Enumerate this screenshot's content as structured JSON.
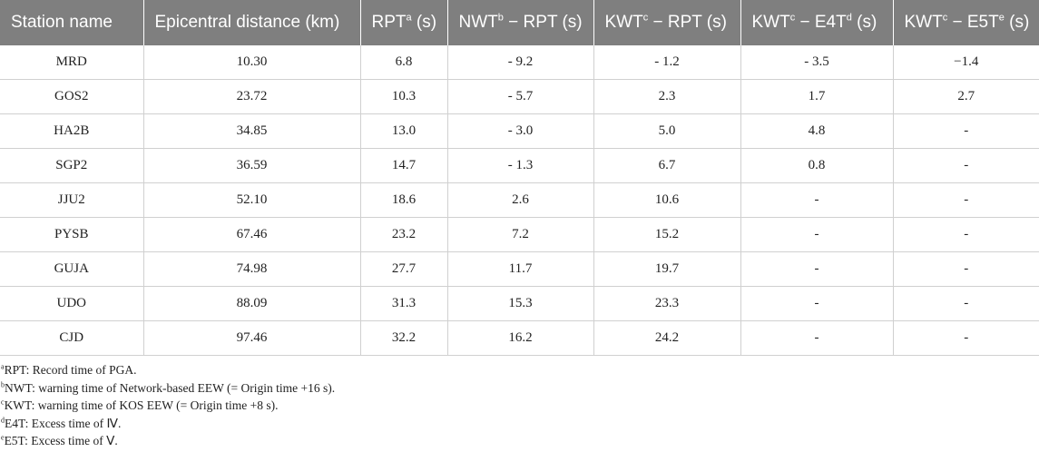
{
  "header": {
    "station": "Station name",
    "distance": "Epicentral distance (km)",
    "rpt": {
      "base": "RPT",
      "sup": "a",
      "tail": " (s)"
    },
    "nwt_rpt": {
      "base": "NWT",
      "sup": "b",
      "tail": " − RPT (s)"
    },
    "kwt_rpt": {
      "base": "KWT",
      "sup": "c",
      "tail": " − RPT (s)"
    },
    "kwt_e4t": {
      "base": "KWT",
      "sup": "c",
      "mid": " − E4T",
      "sup2": "d",
      "tail": " (s)"
    },
    "kwt_e5t": {
      "base": "KWT",
      "sup": "c",
      "mid": " − E5T",
      "sup2": "e",
      "tail": " (s)"
    }
  },
  "rows": [
    [
      "MRD",
      "10.30",
      "6.8",
      "- 9.2",
      "- 1.2",
      "- 3.5",
      "−1.4"
    ],
    [
      "GOS2",
      "23.72",
      "10.3",
      "- 5.7",
      "2.3",
      "1.7",
      "2.7"
    ],
    [
      "HA2B",
      "34.85",
      "13.0",
      "- 3.0",
      "5.0",
      "4.8",
      "-"
    ],
    [
      "SGP2",
      "36.59",
      "14.7",
      "- 1.3",
      "6.7",
      "0.8",
      "-"
    ],
    [
      "JJU2",
      "52.10",
      "18.6",
      "2.6",
      "10.6",
      "-",
      "-"
    ],
    [
      "PYSB",
      "67.46",
      "23.2",
      "7.2",
      "15.2",
      "-",
      "-"
    ],
    [
      "GUJA",
      "74.98",
      "27.7",
      "11.7",
      "19.7",
      "-",
      "-"
    ],
    [
      "UDO",
      "88.09",
      "31.3",
      "15.3",
      "23.3",
      "-",
      "-"
    ],
    [
      "CJD",
      "97.46",
      "32.2",
      "16.2",
      "24.2",
      "-",
      "-"
    ]
  ],
  "footnotes": [
    {
      "mark": "a",
      "text": "RPT: Record time of PGA."
    },
    {
      "mark": "b",
      "text": "NWT: warning time of Network-based EEW (= Origin time +16 s)."
    },
    {
      "mark": "c",
      "text": "KWT: warning time of KOS EEW (= Origin time +8 s)."
    },
    {
      "mark": "d",
      "text": "E4T: Excess time of Ⅳ."
    },
    {
      "mark": "e",
      "text": "E5T: Excess time of Ⅴ."
    }
  ]
}
